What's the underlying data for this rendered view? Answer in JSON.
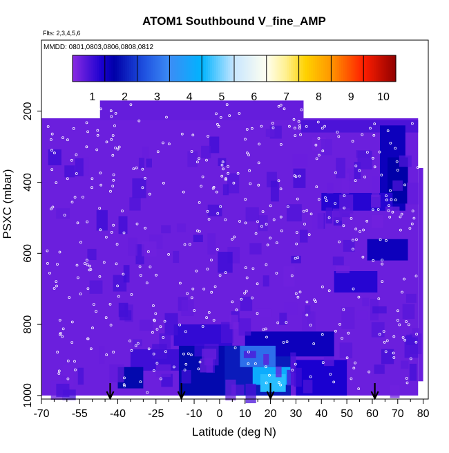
{
  "chart_data": {
    "type": "heatmap",
    "title": "ATOM1 Southbound V_fine_AMP",
    "subtitle_flights": "Flts: 2,3,4,5,6",
    "subtitle_dates": "MMDD: 0801,0803,0806,0808,0812",
    "xlabel": "Latitude (deg N)",
    "ylabel": "PSXC (mbar)",
    "xlim": [
      -70,
      82
    ],
    "ylim": [
      1010,
      0
    ],
    "x_major_ticks": [
      -70,
      -55,
      -40,
      -25,
      -10,
      0,
      10,
      20,
      30,
      40,
      50,
      60,
      70,
      80
    ],
    "x_tick_labels": [
      "-70",
      "-55",
      "-40",
      "-25",
      "-10",
      "0",
      "10",
      "20",
      "30",
      "40",
      "50",
      "60",
      "70",
      "80"
    ],
    "x_minor_ticks": [
      -65,
      -60,
      -50,
      -45,
      -35,
      -30,
      -20,
      -15,
      -5,
      5,
      15,
      25,
      35,
      45,
      55,
      65,
      75
    ],
    "y_ticks": [
      200,
      400,
      600,
      800,
      1000
    ],
    "y_tick_labels": [
      "200",
      "400",
      "600",
      "800",
      "1000"
    ],
    "colorbar": {
      "range": [
        0,
        10
      ],
      "tick_values": [
        1,
        2,
        3,
        4,
        5,
        6,
        7,
        8,
        9,
        10
      ],
      "tick_labels": [
        "1",
        "2",
        "3",
        "4",
        "5",
        "6",
        "7",
        "8",
        "9",
        "10"
      ],
      "stops": [
        {
          "v": 0.0,
          "c": "#8a2be2"
        },
        {
          "v": 0.9,
          "c": "#1a00d0"
        },
        {
          "v": 1.3,
          "c": "#0000a8"
        },
        {
          "v": 2.2,
          "c": "#1e50e0"
        },
        {
          "v": 3.0,
          "c": "#3c8cf5"
        },
        {
          "v": 4.0,
          "c": "#00b4ff"
        },
        {
          "v": 5.0,
          "c": "#c8e6ff"
        },
        {
          "v": 6.0,
          "c": "#fffff0"
        },
        {
          "v": 6.6,
          "c": "#fff090"
        },
        {
          "v": 7.2,
          "c": "#ffd200"
        },
        {
          "v": 8.0,
          "c": "#ff9600"
        },
        {
          "v": 9.0,
          "c": "#ff1e00"
        },
        {
          "v": 10.0,
          "c": "#900000"
        }
      ]
    },
    "field": {
      "background_value": 0.25,
      "regions": [
        {
          "x": [
            -70,
            78
          ],
          "p": [
            220,
            1000
          ],
          "v": 0.25
        },
        {
          "x": [
            -47,
            33
          ],
          "p": [
            170,
            225
          ],
          "v": 0.3
        },
        {
          "x": [
            32,
            78
          ],
          "p": [
            225,
            260
          ],
          "v": 0.5
        },
        {
          "x": [
            63,
            73
          ],
          "p": [
            240,
            480
          ],
          "v": 1.1
        },
        {
          "x": [
            66,
            74
          ],
          "p": [
            330,
            460
          ],
          "v": 1.3
        },
        {
          "x": [
            58,
            74
          ],
          "p": [
            560,
            620
          ],
          "v": 1.1
        },
        {
          "x": [
            40,
            68
          ],
          "p": [
            430,
            480
          ],
          "v": 0.8
        },
        {
          "x": [
            45,
            62
          ],
          "p": [
            650,
            710
          ],
          "v": 0.8
        },
        {
          "x": [
            -18,
            5
          ],
          "p": [
            800,
            860
          ],
          "v": 0.7
        },
        {
          "x": [
            -35,
            0
          ],
          "p": [
            870,
            930
          ],
          "v": 0.6
        },
        {
          "x": [
            -40,
            -30
          ],
          "p": [
            920,
            980
          ],
          "v": 1.4
        },
        {
          "x": [
            -16,
            8
          ],
          "p": [
            860,
            1000
          ],
          "v": 1.4
        },
        {
          "x": [
            2,
            28
          ],
          "p": [
            860,
            1000
          ],
          "v": 1.6
        },
        {
          "x": [
            10,
            45
          ],
          "p": [
            820,
            890
          ],
          "v": 1.1
        },
        {
          "x": [
            8,
            22
          ],
          "p": [
            860,
            920
          ],
          "v": 2.6
        },
        {
          "x": [
            13,
            28
          ],
          "p": [
            920,
            970
          ],
          "v": 3.8
        },
        {
          "x": [
            16,
            26
          ],
          "p": [
            940,
            990
          ],
          "v": 4.2
        },
        {
          "x": [
            30,
            50
          ],
          "p": [
            900,
            1000
          ],
          "v": 0.9
        }
      ],
      "extent_profile": [
        {
          "x": [
            -70,
            -47
          ],
          "p_top": 220,
          "p_bottom": 1000
        },
        {
          "x": [
            -47,
            33
          ],
          "p_top": 170,
          "p_bottom": 1000
        },
        {
          "x": [
            33,
            78
          ],
          "p_top": 225,
          "p_bottom": 1000
        },
        {
          "x": [
            78,
            80
          ],
          "p_top": 360,
          "p_bottom": 960
        }
      ]
    },
    "arrows_latitude": [
      -43,
      -15,
      20,
      61
    ]
  }
}
